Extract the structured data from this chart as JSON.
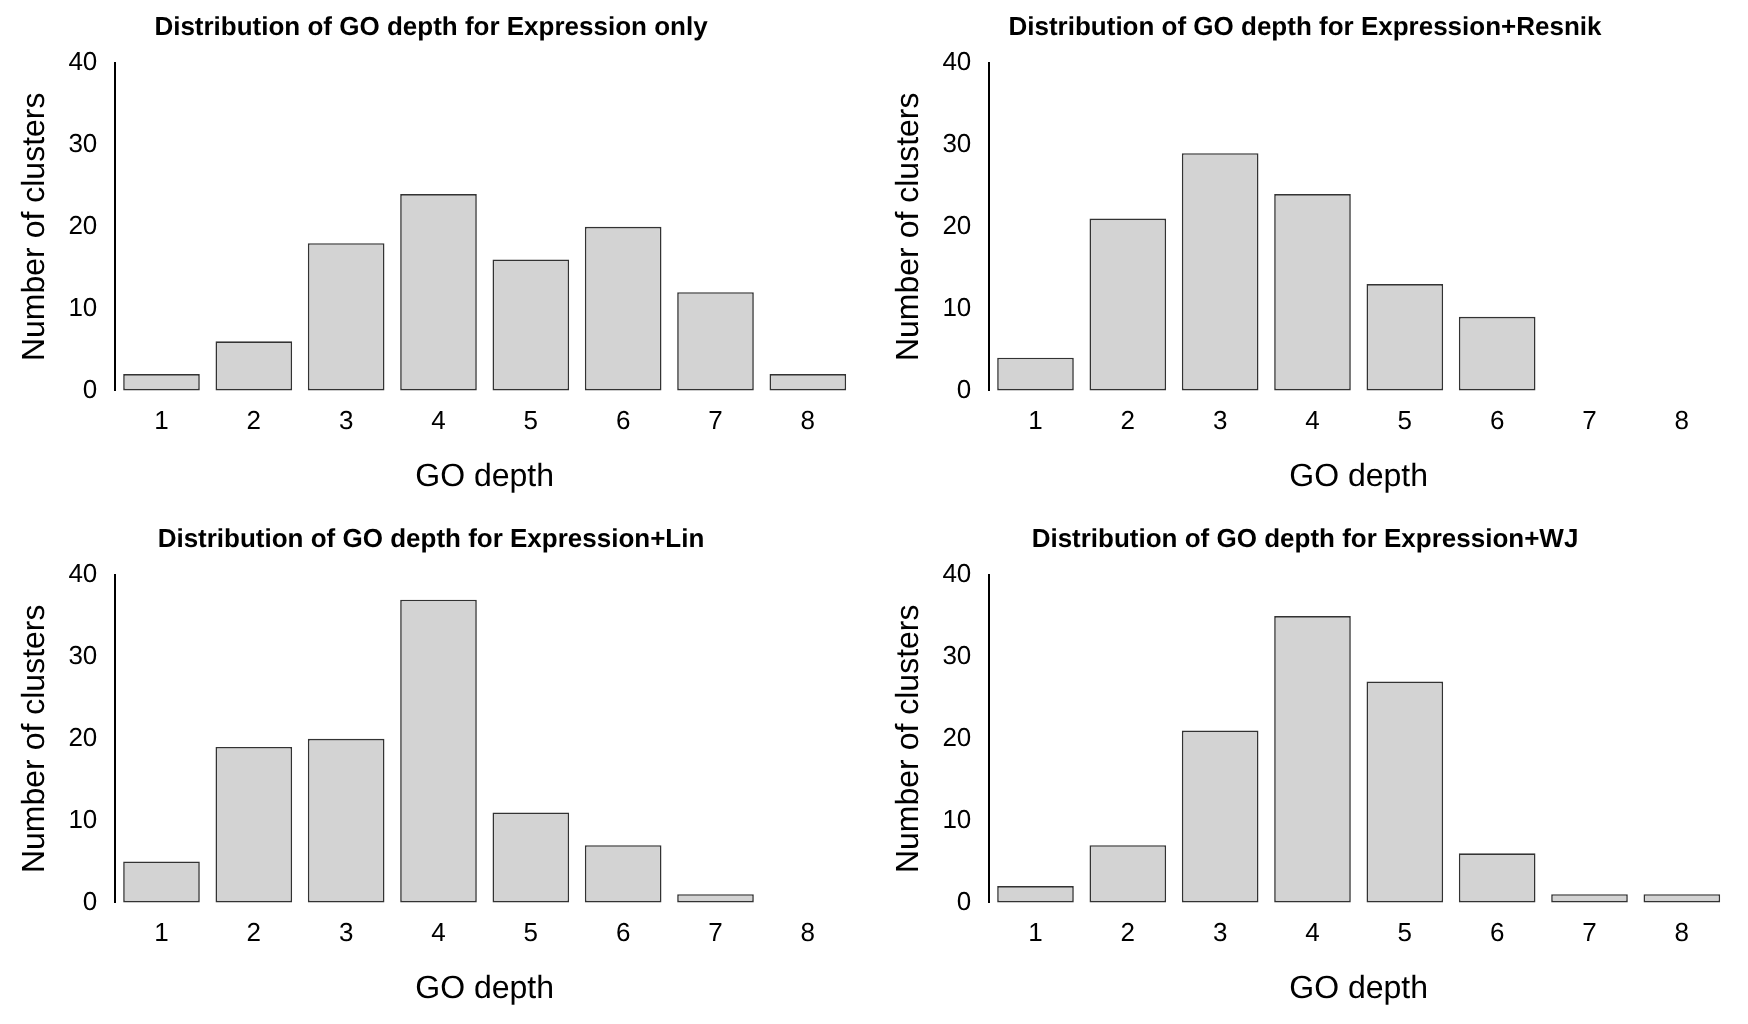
{
  "chart_data": [
    {
      "type": "bar",
      "title": "Distribution of GO depth for Expression only",
      "xlabel": "GO depth",
      "ylabel": "Number of clusters",
      "categories": [
        "1",
        "2",
        "3",
        "4",
        "5",
        "6",
        "7",
        "8"
      ],
      "values": [
        2,
        6,
        18,
        24,
        16,
        20,
        12,
        2
      ],
      "color": "#d3d3d3",
      "ylim": [
        0,
        40
      ],
      "yticks": [
        0,
        10,
        20,
        30,
        40
      ],
      "grid": false,
      "legend": false
    },
    {
      "type": "bar",
      "title": "Distribution of GO depth for Expression+Resnik",
      "xlabel": "GO depth",
      "ylabel": "Number of clusters",
      "categories": [
        "1",
        "2",
        "3",
        "4",
        "5",
        "6",
        "7",
        "8"
      ],
      "values": [
        4,
        21,
        29,
        24,
        13,
        9,
        0,
        0
      ],
      "color": "#d3d3d3",
      "ylim": [
        0,
        40
      ],
      "yticks": [
        0,
        10,
        20,
        30,
        40
      ],
      "grid": false,
      "legend": false
    },
    {
      "type": "bar",
      "title": "Distribution of GO depth for Expression+Lin",
      "xlabel": "GO depth",
      "ylabel": "Number of clusters",
      "categories": [
        "1",
        "2",
        "3",
        "4",
        "5",
        "6",
        "7",
        "8"
      ],
      "values": [
        5,
        19,
        20,
        37,
        11,
        7,
        1,
        0
      ],
      "color": "#d3d3d3",
      "ylim": [
        0,
        40
      ],
      "yticks": [
        0,
        10,
        20,
        30,
        40
      ],
      "grid": false,
      "legend": false
    },
    {
      "type": "bar",
      "title": "Distribution of GO depth for Expression+WJ",
      "xlabel": "GO depth",
      "ylabel": "Number of clusters",
      "categories": [
        "1",
        "2",
        "3",
        "4",
        "5",
        "6",
        "7",
        "8"
      ],
      "values": [
        2,
        7,
        21,
        35,
        27,
        6,
        1,
        1
      ],
      "color": "#d3d3d3",
      "ylim": [
        0,
        40
      ],
      "yticks": [
        0,
        10,
        20,
        30,
        40
      ],
      "grid": false,
      "legend": false
    }
  ]
}
